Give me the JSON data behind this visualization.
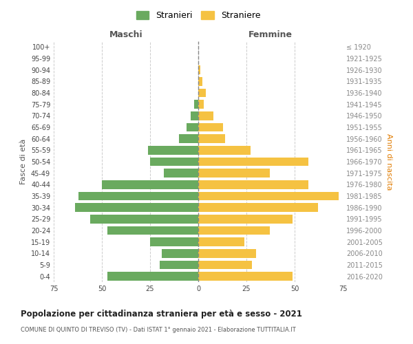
{
  "age_groups": [
    "100+",
    "95-99",
    "90-94",
    "85-89",
    "80-84",
    "75-79",
    "70-74",
    "65-69",
    "60-64",
    "55-59",
    "50-54",
    "45-49",
    "40-44",
    "35-39",
    "30-34",
    "25-29",
    "20-24",
    "15-19",
    "10-14",
    "5-9",
    "0-4"
  ],
  "birth_years": [
    "≤ 1920",
    "1921-1925",
    "1926-1930",
    "1931-1935",
    "1936-1940",
    "1941-1945",
    "1946-1950",
    "1951-1955",
    "1956-1960",
    "1961-1965",
    "1966-1970",
    "1971-1975",
    "1976-1980",
    "1981-1985",
    "1986-1990",
    "1991-1995",
    "1996-2000",
    "2001-2005",
    "2006-2010",
    "2011-2015",
    "2016-2020"
  ],
  "males": [
    0,
    0,
    0,
    0,
    0,
    2,
    4,
    6,
    10,
    26,
    25,
    18,
    50,
    62,
    64,
    56,
    47,
    25,
    19,
    20,
    47
  ],
  "females": [
    0,
    0,
    1,
    2,
    4,
    3,
    8,
    13,
    14,
    27,
    57,
    37,
    57,
    73,
    62,
    49,
    37,
    24,
    30,
    28,
    49
  ],
  "male_color": "#6aaa5f",
  "female_color": "#f5c242",
  "background_color": "#ffffff",
  "grid_color": "#cccccc",
  "title": "Popolazione per cittadinanza straniera per età e sesso - 2021",
  "subtitle": "COMUNE DI QUINTO DI TREVISO (TV) - Dati ISTAT 1° gennaio 2021 - Elaborazione TUTTITALIA.IT",
  "xlabel_left": "Maschi",
  "xlabel_right": "Femmine",
  "ylabel_left": "Fasce di età",
  "ylabel_right": "Anni di nascita",
  "legend_male": "Stranieri",
  "legend_female": "Straniere",
  "xlim": 75
}
